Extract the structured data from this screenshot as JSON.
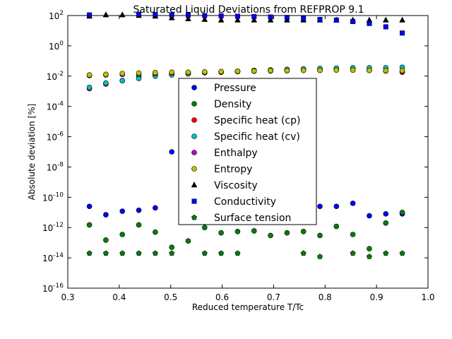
{
  "chart_data": {
    "type": "scatter",
    "title": "Saturated Liquid Deviations from REFPROP 9.1",
    "xlabel": "Reduced temperature T/Tc",
    "ylabel": "Absolute deviation [%]",
    "xlim": [
      0.3,
      1.0
    ],
    "ylim_log10": [
      -16,
      2
    ],
    "yscale": "log",
    "grid": false,
    "legend_position": "center",
    "x_ticks": [
      "0.3",
      "0.4",
      "0.5",
      "0.6",
      "0.7",
      "0.8",
      "0.9",
      "1.0"
    ],
    "y_ticks": [
      {
        "base": "10",
        "exp": "2"
      },
      {
        "base": "10",
        "exp": "0"
      },
      {
        "base": "10",
        "exp": "-2"
      },
      {
        "base": "10",
        "exp": "-4"
      },
      {
        "base": "10",
        "exp": "-6"
      },
      {
        "base": "10",
        "exp": "-8"
      },
      {
        "base": "10",
        "exp": "-10"
      },
      {
        "base": "10",
        "exp": "-12"
      },
      {
        "base": "10",
        "exp": "-14"
      },
      {
        "base": "10",
        "exp": "-16"
      }
    ],
    "x": [
      0.342,
      0.374,
      0.406,
      0.438,
      0.47,
      0.502,
      0.534,
      0.566,
      0.598,
      0.63,
      0.662,
      0.694,
      0.726,
      0.758,
      0.79,
      0.822,
      0.854,
      0.886,
      0.918,
      0.95
    ],
    "series": [
      {
        "name": "Pressure",
        "marker": "circle",
        "color": "#0000ff",
        "y": [
          2.5e-11,
          7e-12,
          1.2e-11,
          1.4e-11,
          2e-11,
          1e-07,
          1.5e-08,
          1.5e-09,
          2e-10,
          1e-10,
          6e-11,
          5e-11,
          4e-11,
          3e-11,
          2.5e-11,
          2.5e-11,
          4e-11,
          6e-12,
          8e-12,
          8e-12
        ]
      },
      {
        "name": "Density",
        "marker": "circle",
        "color": "#008000",
        "y": [
          1.5e-12,
          1.5e-13,
          3.5e-13,
          1.5e-12,
          5e-13,
          5e-14,
          1.3e-13,
          1e-12,
          4.5e-13,
          5.5e-13,
          6e-13,
          3e-13,
          4.5e-13,
          5.5e-13,
          3e-13,
          1.2e-12,
          3.5e-13,
          4e-14,
          2e-12,
          1e-11
        ]
      },
      {
        "name": "Specific heat (cp)",
        "marker": "circle",
        "color": "#ff0000",
        "y": [
          0.0015,
          0.003,
          0.005,
          0.009,
          0.012,
          0.014,
          0.015,
          0.017,
          0.018,
          0.02,
          0.022,
          0.023,
          0.024,
          0.025,
          0.025,
          0.026,
          0.025,
          0.024,
          0.022,
          0.018
        ]
      },
      {
        "name": "Specific heat (cv)",
        "marker": "circle",
        "color": "#00bfbf",
        "y": [
          0.0018,
          0.0035,
          0.005,
          0.007,
          0.01,
          0.012,
          0.014,
          0.017,
          0.019,
          0.021,
          0.024,
          0.026,
          0.028,
          0.03,
          0.032,
          0.034,
          0.035,
          0.035,
          0.035,
          0.038
        ]
      },
      {
        "name": "Enthalpy",
        "marker": "circle",
        "color": "#bf00bf",
        "y": [
          0.011,
          0.012,
          0.013,
          0.014,
          0.015,
          0.016,
          0.017,
          0.018,
          0.019,
          0.02,
          0.021,
          0.022,
          0.023,
          0.024,
          0.024,
          0.025,
          0.025,
          0.024,
          0.023,
          0.022
        ]
      },
      {
        "name": "Entropy",
        "marker": "circle",
        "color": "#bfbf00",
        "y": [
          0.012,
          0.013,
          0.015,
          0.016,
          0.017,
          0.018,
          0.018,
          0.019,
          0.02,
          0.021,
          0.022,
          0.023,
          0.023,
          0.024,
          0.024,
          0.025,
          0.025,
          0.024,
          0.023,
          0.023
        ]
      },
      {
        "name": "Viscosity",
        "marker": "triangle",
        "color": "#000000",
        "y": [
          90,
          110,
          110,
          100,
          90,
          70,
          60,
          55,
          50,
          50,
          50,
          50,
          50,
          50,
          50,
          50,
          50,
          50,
          50,
          50
        ]
      },
      {
        "name": "Conductivity",
        "marker": "square",
        "color": "#0000ff",
        "y": [
          110,
          130,
          130,
          120,
          115,
          110,
          105,
          100,
          95,
          90,
          85,
          80,
          75,
          65,
          55,
          50,
          40,
          30,
          18,
          7
        ]
      },
      {
        "name": "Surface tension",
        "marker": "pentagon",
        "color": "#008000",
        "y": [
          2e-14,
          2e-14,
          2e-14,
          2e-14,
          2e-14,
          2e-14,
          null,
          2e-14,
          2e-14,
          2e-14,
          null,
          null,
          null,
          2e-14,
          1.2e-14,
          null,
          2e-14,
          1.2e-14,
          2e-14,
          2e-14
        ]
      }
    ]
  }
}
